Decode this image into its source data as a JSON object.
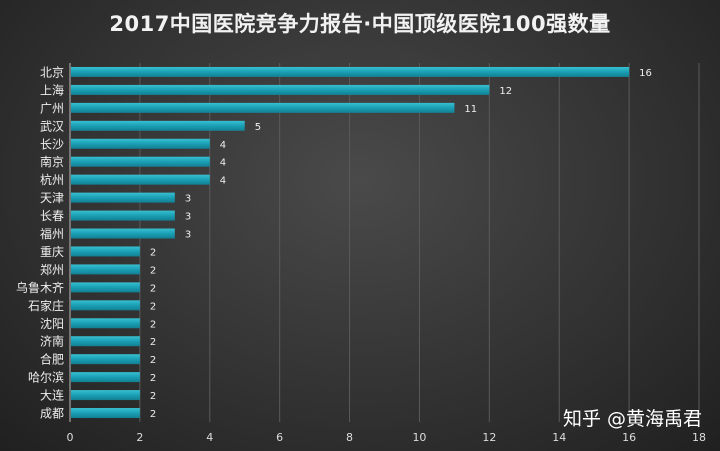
{
  "chart_data": {
    "type": "bar",
    "orientation": "horizontal",
    "title": "2017中国医院竞争力报告·中国顶级医院100强数量",
    "categories": [
      "北京",
      "上海",
      "广州",
      "武汉",
      "长沙",
      "南京",
      "杭州",
      "天津",
      "长春",
      "福州",
      "重庆",
      "郑州",
      "乌鲁木齐",
      "石家庄",
      "沈阳",
      "济南",
      "合肥",
      "哈尔滨",
      "大连",
      "成都"
    ],
    "values": [
      16,
      12,
      11,
      5,
      4,
      4,
      4,
      3,
      3,
      3,
      2,
      2,
      2,
      2,
      2,
      2,
      2,
      2,
      2,
      2
    ],
    "xlim": [
      0,
      18
    ],
    "xticks": [
      0,
      2,
      4,
      6,
      8,
      10,
      12,
      14,
      16,
      18
    ],
    "grid": true,
    "data_labels": true,
    "bar_color": "#1fa4b8",
    "background_color": "#333333"
  },
  "watermark": "知乎 @黄海禹君"
}
